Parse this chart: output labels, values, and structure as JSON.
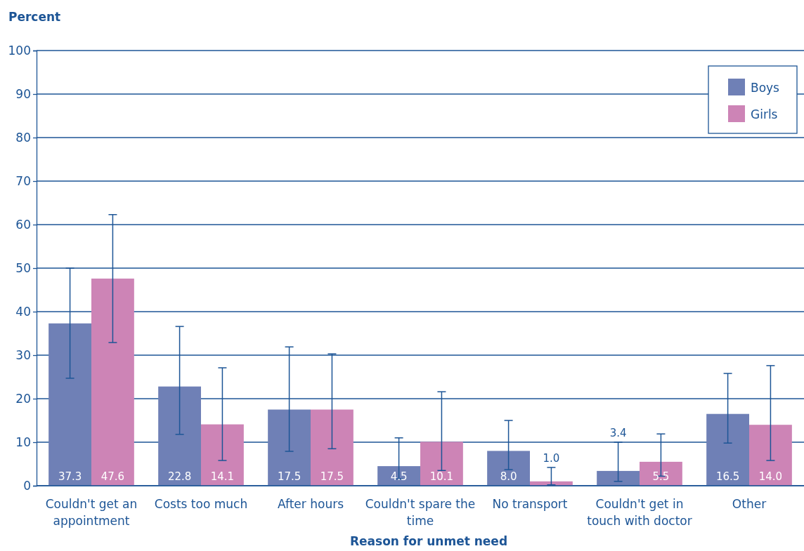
{
  "chart_data": {
    "type": "bar",
    "ylabel": "Percent",
    "xlabel": "Reason for unmet need",
    "categories": [
      "Couldn't get an appointment",
      "Costs too much",
      "After hours",
      "Couldn't spare the time",
      "No transport",
      "Couldn't get in touch with doctor",
      "Other"
    ],
    "series": [
      {
        "name": "Boys",
        "color": "#6f80b6",
        "values": [
          37.3,
          22.8,
          17.5,
          4.5,
          8.0,
          3.4,
          16.5
        ],
        "value_labels": [
          "37.3",
          "22.8",
          "17.5",
          "4.5",
          "8.0",
          "3.4",
          "16.5"
        ],
        "errors": [
          [
            24.7,
            50.0
          ],
          [
            11.8,
            36.6
          ],
          [
            7.9,
            31.9
          ],
          [
            1.6,
            11.0
          ],
          [
            3.7,
            15.0
          ],
          [
            1.0,
            10.0
          ],
          [
            9.8,
            25.8
          ]
        ]
      },
      {
        "name": "Girls",
        "color": "#cd84b6",
        "values": [
          47.6,
          14.1,
          17.5,
          10.1,
          1.0,
          5.5,
          14.0
        ],
        "value_labels": [
          "47.6",
          "14.1",
          "17.5",
          "10.1",
          "1.0",
          "5.5",
          "14.0"
        ],
        "errors": [
          [
            32.9,
            62.3
          ],
          [
            5.8,
            27.1
          ],
          [
            8.5,
            30.3
          ],
          [
            3.5,
            21.6
          ],
          [
            0.2,
            4.2
          ],
          [
            2.2,
            11.9
          ],
          [
            5.8,
            27.6
          ]
        ]
      }
    ],
    "ylim": [
      0,
      100
    ],
    "yticks": [
      0,
      10,
      20,
      30,
      40,
      50,
      60,
      70,
      80,
      90,
      100
    ],
    "grid": "y",
    "legend": "top right"
  }
}
